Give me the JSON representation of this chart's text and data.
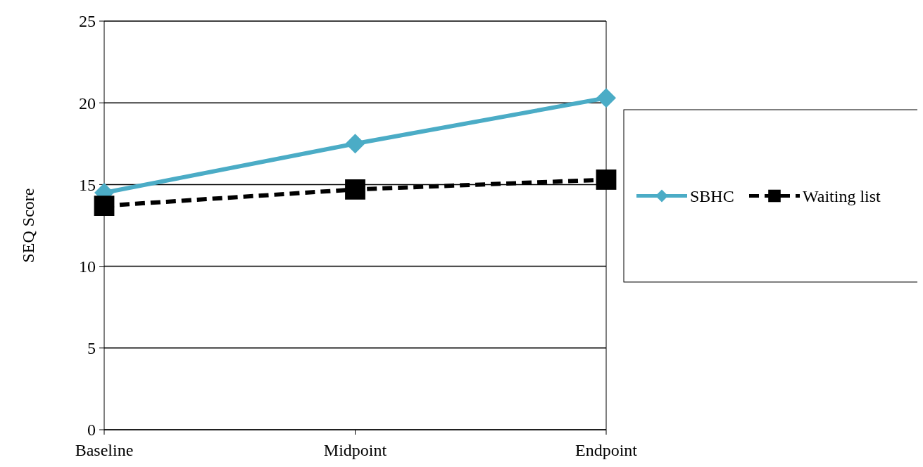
{
  "chart_data": {
    "type": "line",
    "ylabel": "SEQ Score",
    "categories": [
      "Baseline",
      "Midpoint",
      "Endpoint"
    ],
    "series": [
      {
        "name": "SBHC",
        "color": "#4bacc6",
        "values": [
          14.5,
          17.5,
          20.3
        ],
        "marker": "diamond",
        "line_style": "solid"
      },
      {
        "name": "Waiting list",
        "color": "#000000",
        "values": [
          13.7,
          14.7,
          15.3
        ],
        "marker": "square",
        "line_style": "dashed"
      }
    ],
    "ylim": [
      0,
      25
    ],
    "yticks": [
      0,
      5,
      10,
      15,
      20,
      25
    ],
    "grid": "y",
    "legend": "right"
  }
}
